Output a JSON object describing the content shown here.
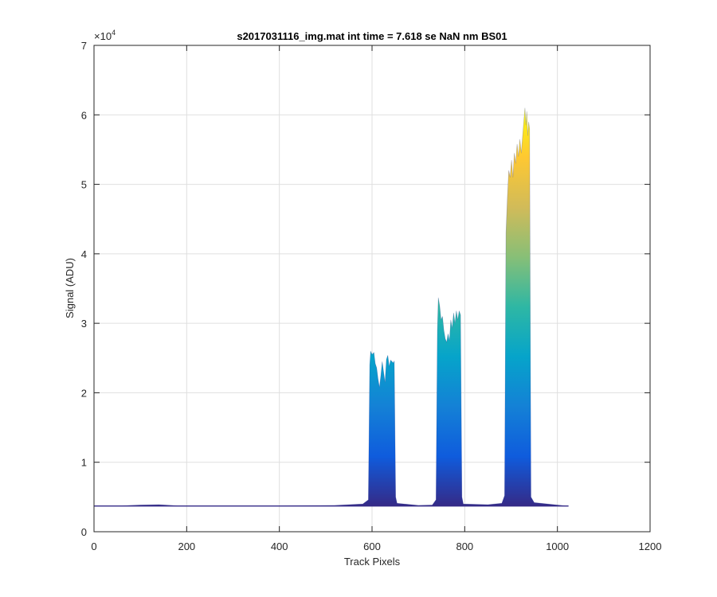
{
  "chart_data": {
    "type": "area",
    "title": "s2017031116_img.mat int time = 7.618 se  NaN nm BS01",
    "xlabel": "Track Pixels",
    "ylabel": "Signal (ADU)",
    "xlim": [
      0,
      1200
    ],
    "ylim": [
      0,
      70000
    ],
    "x_ticks": [
      "0",
      "200",
      "400",
      "600",
      "800",
      "1000",
      "1200"
    ],
    "y_ticks": [
      "0",
      "1",
      "2",
      "3",
      "4",
      "5",
      "6",
      "7"
    ],
    "y_exponent_label": "×10",
    "y_exponent_power": "4",
    "grid": true,
    "colormap": [
      "#352a87",
      "#0f5cdd",
      "#1481d6",
      "#06a4ca",
      "#2eb7a4",
      "#87bf77",
      "#d1bb59",
      "#fec832",
      "#f9fb0e"
    ],
    "baseline": 3700,
    "series": [
      {
        "upper": [
          [
            0,
            3700
          ],
          [
            60,
            3750
          ],
          [
            100,
            3850
          ],
          [
            140,
            3900
          ],
          [
            180,
            3750
          ],
          [
            260,
            3700
          ],
          [
            400,
            3750
          ],
          [
            520,
            3800
          ],
          [
            580,
            4000
          ],
          [
            592,
            4600
          ],
          [
            595,
            24000
          ],
          [
            597,
            26000
          ],
          [
            600,
            25500
          ],
          [
            604,
            25800
          ],
          [
            607,
            24200
          ],
          [
            610,
            23600
          ],
          [
            613,
            22000
          ],
          [
            616,
            20800
          ],
          [
            619,
            22500
          ],
          [
            622,
            24500
          ],
          [
            625,
            23000
          ],
          [
            628,
            21500
          ],
          [
            631,
            24800
          ],
          [
            634,
            25400
          ],
          [
            637,
            23800
          ],
          [
            640,
            24700
          ],
          [
            643,
            24500
          ],
          [
            646,
            24300
          ],
          [
            648,
            24600
          ],
          [
            651,
            5000
          ],
          [
            654,
            4100
          ],
          [
            700,
            3800
          ],
          [
            730,
            3850
          ],
          [
            738,
            4600
          ],
          [
            741,
            29000
          ],
          [
            743,
            33700
          ],
          [
            746,
            32500
          ],
          [
            749,
            30500
          ],
          [
            752,
            31000
          ],
          [
            755,
            29000
          ],
          [
            758,
            27800
          ],
          [
            761,
            27300
          ],
          [
            764,
            28500
          ],
          [
            767,
            27500
          ],
          [
            770,
            30500
          ],
          [
            773,
            29300
          ],
          [
            776,
            31500
          ],
          [
            779,
            30000
          ],
          [
            782,
            31800
          ],
          [
            785,
            30500
          ],
          [
            788,
            31800
          ],
          [
            791,
            31200
          ],
          [
            794,
            5000
          ],
          [
            797,
            4000
          ],
          [
            850,
            3900
          ],
          [
            880,
            4100
          ],
          [
            886,
            5200
          ],
          [
            889,
            43000
          ],
          [
            892,
            48000
          ],
          [
            895,
            52000
          ],
          [
            898,
            51000
          ],
          [
            901,
            53500
          ],
          [
            904,
            51000
          ],
          [
            907,
            54500
          ],
          [
            910,
            53000
          ],
          [
            913,
            55800
          ],
          [
            916,
            54000
          ],
          [
            919,
            56500
          ],
          [
            922,
            54500
          ],
          [
            925,
            57000
          ],
          [
            928,
            59500
          ],
          [
            930,
            61000
          ],
          [
            932,
            58500
          ],
          [
            934,
            60500
          ],
          [
            936,
            57000
          ],
          [
            938,
            59000
          ],
          [
            940,
            58000
          ],
          [
            943,
            5000
          ],
          [
            950,
            4200
          ],
          [
            1000,
            3850
          ],
          [
            1024,
            3700
          ]
        ]
      }
    ]
  }
}
